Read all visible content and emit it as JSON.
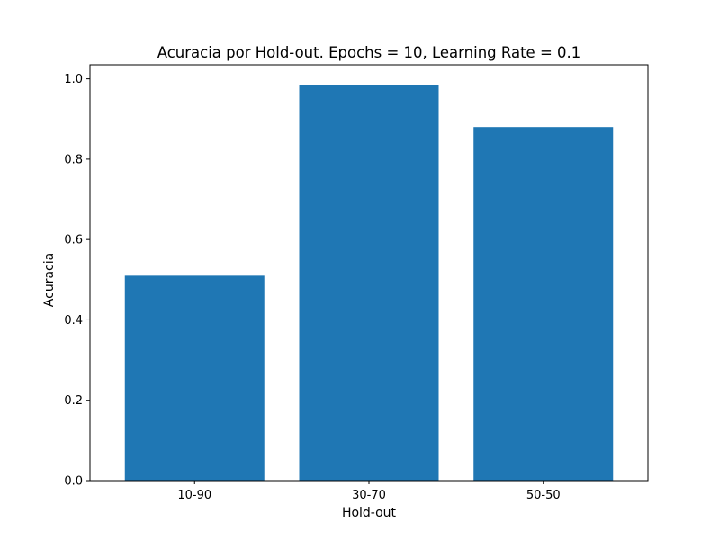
{
  "chart_data": {
    "type": "bar",
    "title": "Acuracia por Hold-out. Epochs = 10, Learning Rate = 0.1",
    "xlabel": "Hold-out",
    "ylabel": "Acuracia",
    "categories": [
      "10-90",
      "30-70",
      "50-50"
    ],
    "values": [
      0.51,
      0.985,
      0.88
    ],
    "ylim": [
      0,
      1.035
    ],
    "yticks": [
      0.0,
      0.2,
      0.4,
      0.6,
      0.8,
      1.0
    ],
    "ytick_labels": [
      "0.0",
      "0.2",
      "0.4",
      "0.6",
      "0.8",
      "1.0"
    ],
    "bar_color": "#1f77b4",
    "grid": false,
    "legend": "none"
  }
}
